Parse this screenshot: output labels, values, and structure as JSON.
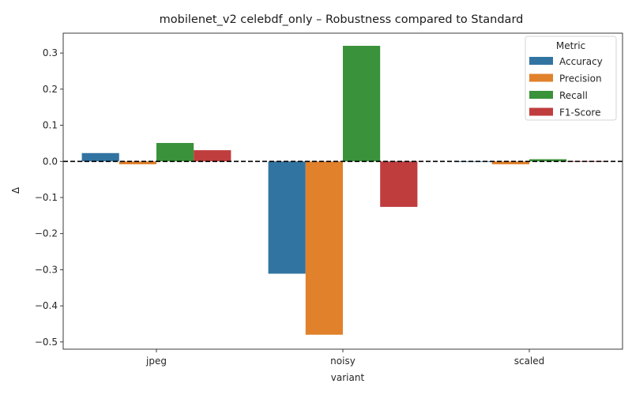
{
  "chart_data": {
    "type": "bar",
    "title": "mobilenet_v2 celebdf_only – Robustness compared to Standard",
    "xlabel": "variant",
    "ylabel": "Δ",
    "categories": [
      "jpeg",
      "noisy",
      "scaled"
    ],
    "ylim": [
      -0.52,
      0.355
    ],
    "yticks": [
      -0.5,
      -0.4,
      -0.3,
      -0.2,
      -0.1,
      0.0,
      0.1,
      0.2,
      0.3
    ],
    "ytick_labels": [
      "−0.5",
      "−0.4",
      "−0.3",
      "−0.2",
      "−0.1",
      "0.0",
      "0.1",
      "0.2",
      "0.3"
    ],
    "reference_line": {
      "y": 0,
      "style": "dashed",
      "color": "#000000"
    },
    "grid": false,
    "legend": {
      "title": "Metric",
      "placement": "top-right"
    },
    "series": [
      {
        "name": "Accuracy",
        "color": "#3274a1",
        "values": [
          0.023,
          -0.311,
          -0.001
        ]
      },
      {
        "name": "Precision",
        "color": "#e1812c",
        "values": [
          -0.008,
          -0.48,
          -0.008
        ]
      },
      {
        "name": "Recall",
        "color": "#3a923a",
        "values": [
          0.051,
          0.32,
          0.006
        ]
      },
      {
        "name": "F1-Score",
        "color": "#c03d3e",
        "values": [
          0.031,
          -0.126,
          0.001
        ]
      }
    ]
  }
}
